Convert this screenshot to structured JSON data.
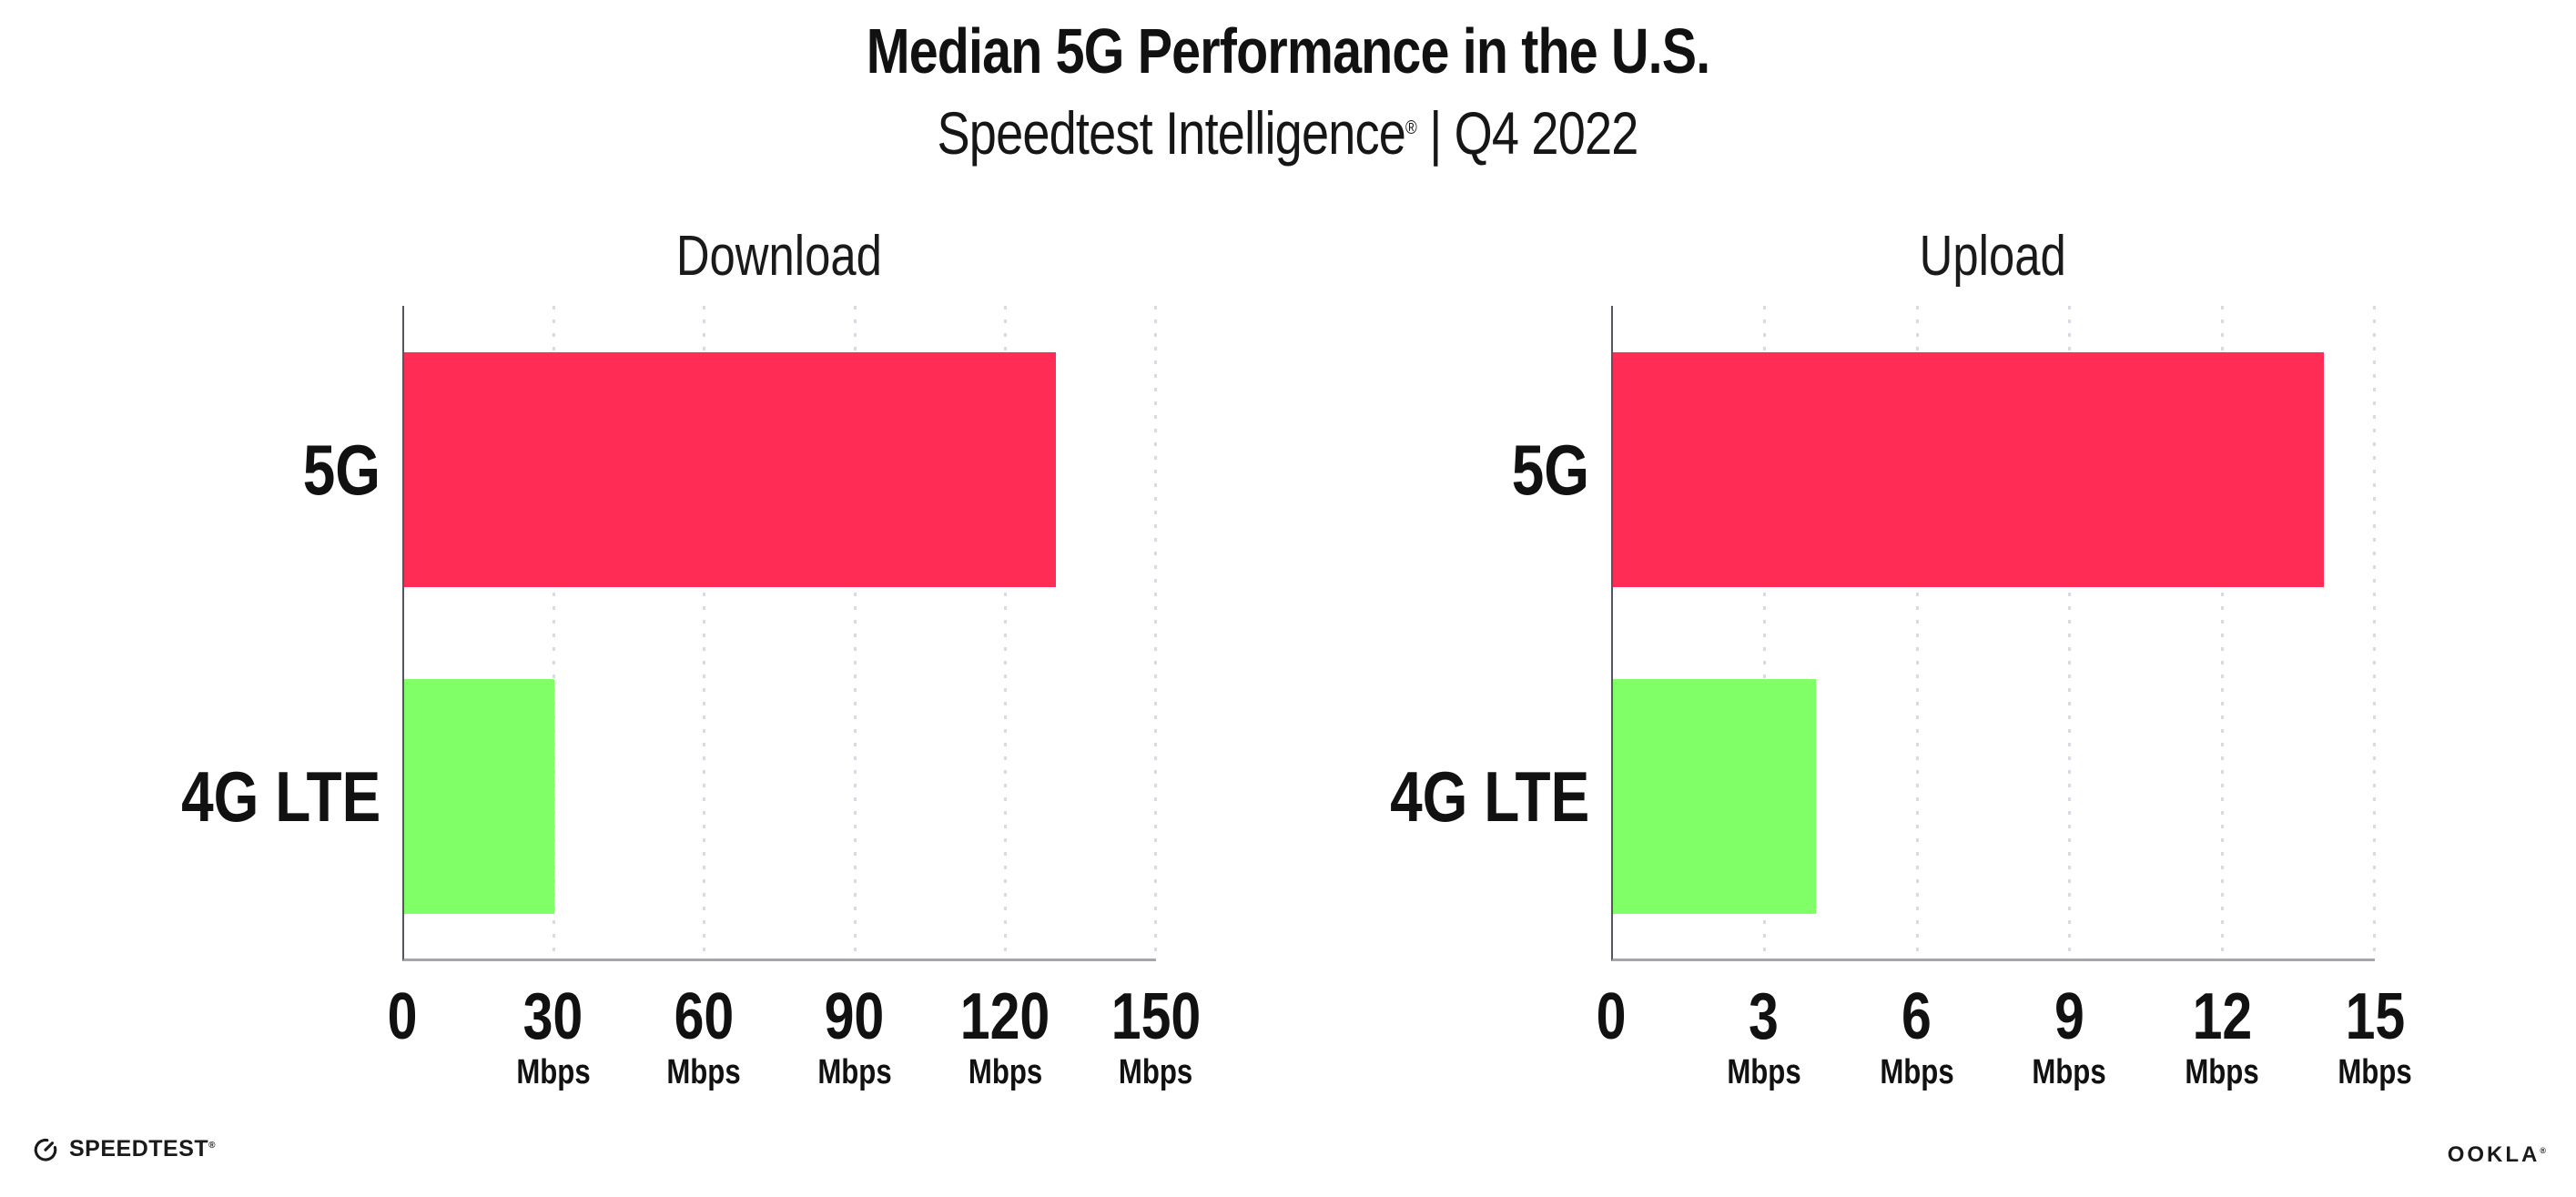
{
  "header": {
    "title": "Median 5G Performance in the U.S.",
    "subtitle_brand": "Speedtest Intelligence",
    "subtitle_reg": "®",
    "subtitle_tail": " | Q4 2022"
  },
  "chart_data": [
    {
      "type": "bar",
      "orientation": "horizontal",
      "title": "Download",
      "categories": [
        "5G",
        "4G LTE"
      ],
      "values": [
        130,
        30
      ],
      "unit": "Mbps",
      "colors": [
        "#FF2D55",
        "#80FF66"
      ],
      "xlim": [
        0,
        150
      ],
      "ticks": [
        0,
        30,
        60,
        90,
        120,
        150
      ],
      "tick_unit_label": "Mbps",
      "grid": "dotted-vertical-at-ticks",
      "legend": "none"
    },
    {
      "type": "bar",
      "orientation": "horizontal",
      "title": "Upload",
      "categories": [
        "5G",
        "4G LTE"
      ],
      "values": [
        14,
        4
      ],
      "unit": "Mbps",
      "colors": [
        "#FF2D55",
        "#80FF66"
      ],
      "xlim": [
        0,
        15
      ],
      "ticks": [
        0,
        3,
        6,
        9,
        12,
        15
      ],
      "tick_unit_label": "Mbps",
      "grid": "dotted-vertical-at-ticks",
      "legend": "none"
    }
  ],
  "footer": {
    "speedtest_label": "SPEEDTEST",
    "speedtest_reg": "®",
    "speedtest_icon": "gauge-icon",
    "ookla_label": "OOKLA",
    "ookla_reg": "®"
  },
  "colors": {
    "bar_5g": "#FF2D55",
    "bar_4g_lte": "#80FF66",
    "y_axis": "#55555f",
    "x_axis": "#a5a5ad",
    "gridline": "#d9dae5",
    "text": "#111111",
    "background": "#ffffff"
  }
}
